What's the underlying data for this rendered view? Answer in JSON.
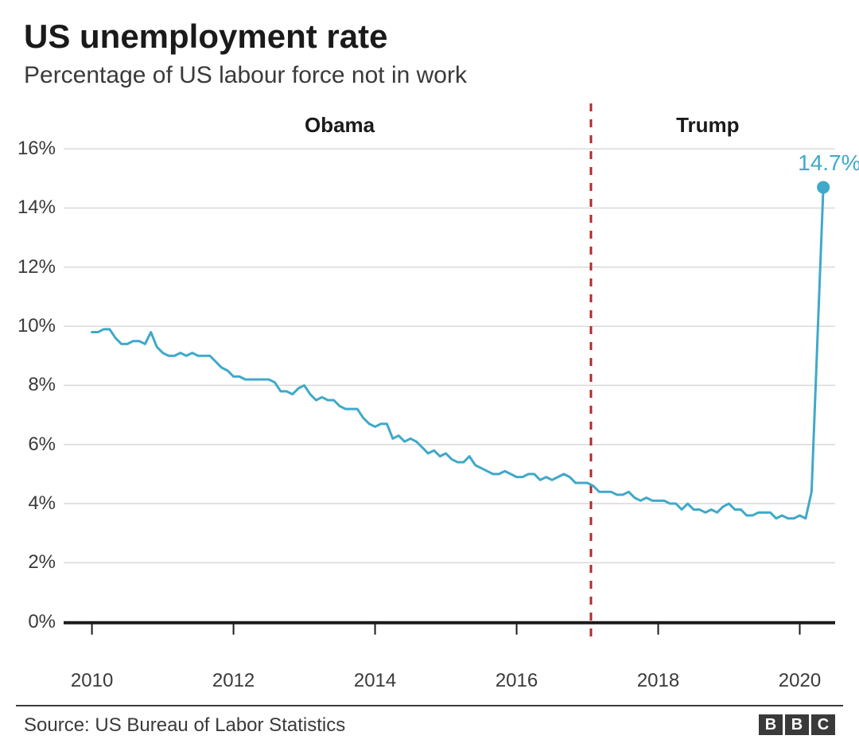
{
  "title": "US unemployment rate",
  "subtitle": "Percentage of US labour force not in work",
  "source": "Source: US Bureau of Labor Statistics",
  "logo_letters": [
    "B",
    "B",
    "C"
  ],
  "chart": {
    "type": "line",
    "background_color": "#ffffff",
    "grid_color": "#d9d9d9",
    "axis_color": "#1a1a1a",
    "line_color": "#3fa9c9",
    "line_width": 3,
    "divider_color": "#b02a2a",
    "divider_dash": "10,10",
    "divider_width": 3,
    "divider_x_year": 2017.05,
    "title_fontsize": 42,
    "subtitle_fontsize": 30,
    "tick_fontsize": 24,
    "period_label_fontsize": 26,
    "end_label_fontsize": 28,
    "end_label_color": "#3fa9c9",
    "xlim": [
      2009.6,
      2020.5
    ],
    "ylim": [
      -1.3,
      17.0
    ],
    "yticks": [
      0,
      2,
      4,
      6,
      8,
      10,
      12,
      14,
      16
    ],
    "ytick_labels": [
      "0%",
      "2%",
      "4%",
      "6%",
      "8%",
      "10%",
      "12%",
      "14%",
      "16%"
    ],
    "xticks": [
      2010,
      2012,
      2014,
      2016,
      2018,
      2020
    ],
    "xtick_labels": [
      "2010",
      "2012",
      "2014",
      "2016",
      "2018",
      "2020"
    ],
    "periods": [
      {
        "label": "Obama",
        "x_year": 2013.5
      },
      {
        "label": "Trump",
        "x_year": 2018.7
      }
    ],
    "end_point": {
      "x_year": 2020.333,
      "value": 14.7,
      "label": "14.7%",
      "marker_radius": 8
    },
    "series": [
      {
        "x": 2010.0,
        "y": 9.8
      },
      {
        "x": 2010.083,
        "y": 9.8
      },
      {
        "x": 2010.167,
        "y": 9.9
      },
      {
        "x": 2010.25,
        "y": 9.9
      },
      {
        "x": 2010.333,
        "y": 9.6
      },
      {
        "x": 2010.417,
        "y": 9.4
      },
      {
        "x": 2010.5,
        "y": 9.4
      },
      {
        "x": 2010.583,
        "y": 9.5
      },
      {
        "x": 2010.667,
        "y": 9.5
      },
      {
        "x": 2010.75,
        "y": 9.4
      },
      {
        "x": 2010.833,
        "y": 9.8
      },
      {
        "x": 2010.917,
        "y": 9.3
      },
      {
        "x": 2011.0,
        "y": 9.1
      },
      {
        "x": 2011.083,
        "y": 9.0
      },
      {
        "x": 2011.167,
        "y": 9.0
      },
      {
        "x": 2011.25,
        "y": 9.1
      },
      {
        "x": 2011.333,
        "y": 9.0
      },
      {
        "x": 2011.417,
        "y": 9.1
      },
      {
        "x": 2011.5,
        "y": 9.0
      },
      {
        "x": 2011.583,
        "y": 9.0
      },
      {
        "x": 2011.667,
        "y": 9.0
      },
      {
        "x": 2011.75,
        "y": 8.8
      },
      {
        "x": 2011.833,
        "y": 8.6
      },
      {
        "x": 2011.917,
        "y": 8.5
      },
      {
        "x": 2012.0,
        "y": 8.3
      },
      {
        "x": 2012.083,
        "y": 8.3
      },
      {
        "x": 2012.167,
        "y": 8.2
      },
      {
        "x": 2012.25,
        "y": 8.2
      },
      {
        "x": 2012.333,
        "y": 8.2
      },
      {
        "x": 2012.417,
        "y": 8.2
      },
      {
        "x": 2012.5,
        "y": 8.2
      },
      {
        "x": 2012.583,
        "y": 8.1
      },
      {
        "x": 2012.667,
        "y": 7.8
      },
      {
        "x": 2012.75,
        "y": 7.8
      },
      {
        "x": 2012.833,
        "y": 7.7
      },
      {
        "x": 2012.917,
        "y": 7.9
      },
      {
        "x": 2013.0,
        "y": 8.0
      },
      {
        "x": 2013.083,
        "y": 7.7
      },
      {
        "x": 2013.167,
        "y": 7.5
      },
      {
        "x": 2013.25,
        "y": 7.6
      },
      {
        "x": 2013.333,
        "y": 7.5
      },
      {
        "x": 2013.417,
        "y": 7.5
      },
      {
        "x": 2013.5,
        "y": 7.3
      },
      {
        "x": 2013.583,
        "y": 7.2
      },
      {
        "x": 2013.667,
        "y": 7.2
      },
      {
        "x": 2013.75,
        "y": 7.2
      },
      {
        "x": 2013.833,
        "y": 6.9
      },
      {
        "x": 2013.917,
        "y": 6.7
      },
      {
        "x": 2014.0,
        "y": 6.6
      },
      {
        "x": 2014.083,
        "y": 6.7
      },
      {
        "x": 2014.167,
        "y": 6.7
      },
      {
        "x": 2014.25,
        "y": 6.2
      },
      {
        "x": 2014.333,
        "y": 6.3
      },
      {
        "x": 2014.417,
        "y": 6.1
      },
      {
        "x": 2014.5,
        "y": 6.2
      },
      {
        "x": 2014.583,
        "y": 6.1
      },
      {
        "x": 2014.667,
        "y": 5.9
      },
      {
        "x": 2014.75,
        "y": 5.7
      },
      {
        "x": 2014.833,
        "y": 5.8
      },
      {
        "x": 2014.917,
        "y": 5.6
      },
      {
        "x": 2015.0,
        "y": 5.7
      },
      {
        "x": 2015.083,
        "y": 5.5
      },
      {
        "x": 2015.167,
        "y": 5.4
      },
      {
        "x": 2015.25,
        "y": 5.4
      },
      {
        "x": 2015.333,
        "y": 5.6
      },
      {
        "x": 2015.417,
        "y": 5.3
      },
      {
        "x": 2015.5,
        "y": 5.2
      },
      {
        "x": 2015.583,
        "y": 5.1
      },
      {
        "x": 2015.667,
        "y": 5.0
      },
      {
        "x": 2015.75,
        "y": 5.0
      },
      {
        "x": 2015.833,
        "y": 5.1
      },
      {
        "x": 2015.917,
        "y": 5.0
      },
      {
        "x": 2016.0,
        "y": 4.9
      },
      {
        "x": 2016.083,
        "y": 4.9
      },
      {
        "x": 2016.167,
        "y": 5.0
      },
      {
        "x": 2016.25,
        "y": 5.0
      },
      {
        "x": 2016.333,
        "y": 4.8
      },
      {
        "x": 2016.417,
        "y": 4.9
      },
      {
        "x": 2016.5,
        "y": 4.8
      },
      {
        "x": 2016.583,
        "y": 4.9
      },
      {
        "x": 2016.667,
        "y": 5.0
      },
      {
        "x": 2016.75,
        "y": 4.9
      },
      {
        "x": 2016.833,
        "y": 4.7
      },
      {
        "x": 2016.917,
        "y": 4.7
      },
      {
        "x": 2017.0,
        "y": 4.7
      },
      {
        "x": 2017.083,
        "y": 4.6
      },
      {
        "x": 2017.167,
        "y": 4.4
      },
      {
        "x": 2017.25,
        "y": 4.4
      },
      {
        "x": 2017.333,
        "y": 4.4
      },
      {
        "x": 2017.417,
        "y": 4.3
      },
      {
        "x": 2017.5,
        "y": 4.3
      },
      {
        "x": 2017.583,
        "y": 4.4
      },
      {
        "x": 2017.667,
        "y": 4.2
      },
      {
        "x": 2017.75,
        "y": 4.1
      },
      {
        "x": 2017.833,
        "y": 4.2
      },
      {
        "x": 2017.917,
        "y": 4.1
      },
      {
        "x": 2018.0,
        "y": 4.1
      },
      {
        "x": 2018.083,
        "y": 4.1
      },
      {
        "x": 2018.167,
        "y": 4.0
      },
      {
        "x": 2018.25,
        "y": 4.0
      },
      {
        "x": 2018.333,
        "y": 3.8
      },
      {
        "x": 2018.417,
        "y": 4.0
      },
      {
        "x": 2018.5,
        "y": 3.8
      },
      {
        "x": 2018.583,
        "y": 3.8
      },
      {
        "x": 2018.667,
        "y": 3.7
      },
      {
        "x": 2018.75,
        "y": 3.8
      },
      {
        "x": 2018.833,
        "y": 3.7
      },
      {
        "x": 2018.917,
        "y": 3.9
      },
      {
        "x": 2019.0,
        "y": 4.0
      },
      {
        "x": 2019.083,
        "y": 3.8
      },
      {
        "x": 2019.167,
        "y": 3.8
      },
      {
        "x": 2019.25,
        "y": 3.6
      },
      {
        "x": 2019.333,
        "y": 3.6
      },
      {
        "x": 2019.417,
        "y": 3.7
      },
      {
        "x": 2019.5,
        "y": 3.7
      },
      {
        "x": 2019.583,
        "y": 3.7
      },
      {
        "x": 2019.667,
        "y": 3.5
      },
      {
        "x": 2019.75,
        "y": 3.6
      },
      {
        "x": 2019.833,
        "y": 3.5
      },
      {
        "x": 2019.917,
        "y": 3.5
      },
      {
        "x": 2020.0,
        "y": 3.6
      },
      {
        "x": 2020.083,
        "y": 3.5
      },
      {
        "x": 2020.167,
        "y": 4.4
      },
      {
        "x": 2020.333,
        "y": 14.7
      }
    ]
  }
}
